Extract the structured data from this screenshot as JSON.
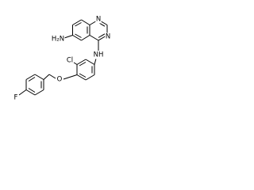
{
  "molecule": {
    "atoms": {
      "amine": "H₂N",
      "n1": "N",
      "n3": "N",
      "chlorine": "Cl",
      "anilino": "NH",
      "oxygen": "O",
      "fluorine": "F"
    }
  }
}
